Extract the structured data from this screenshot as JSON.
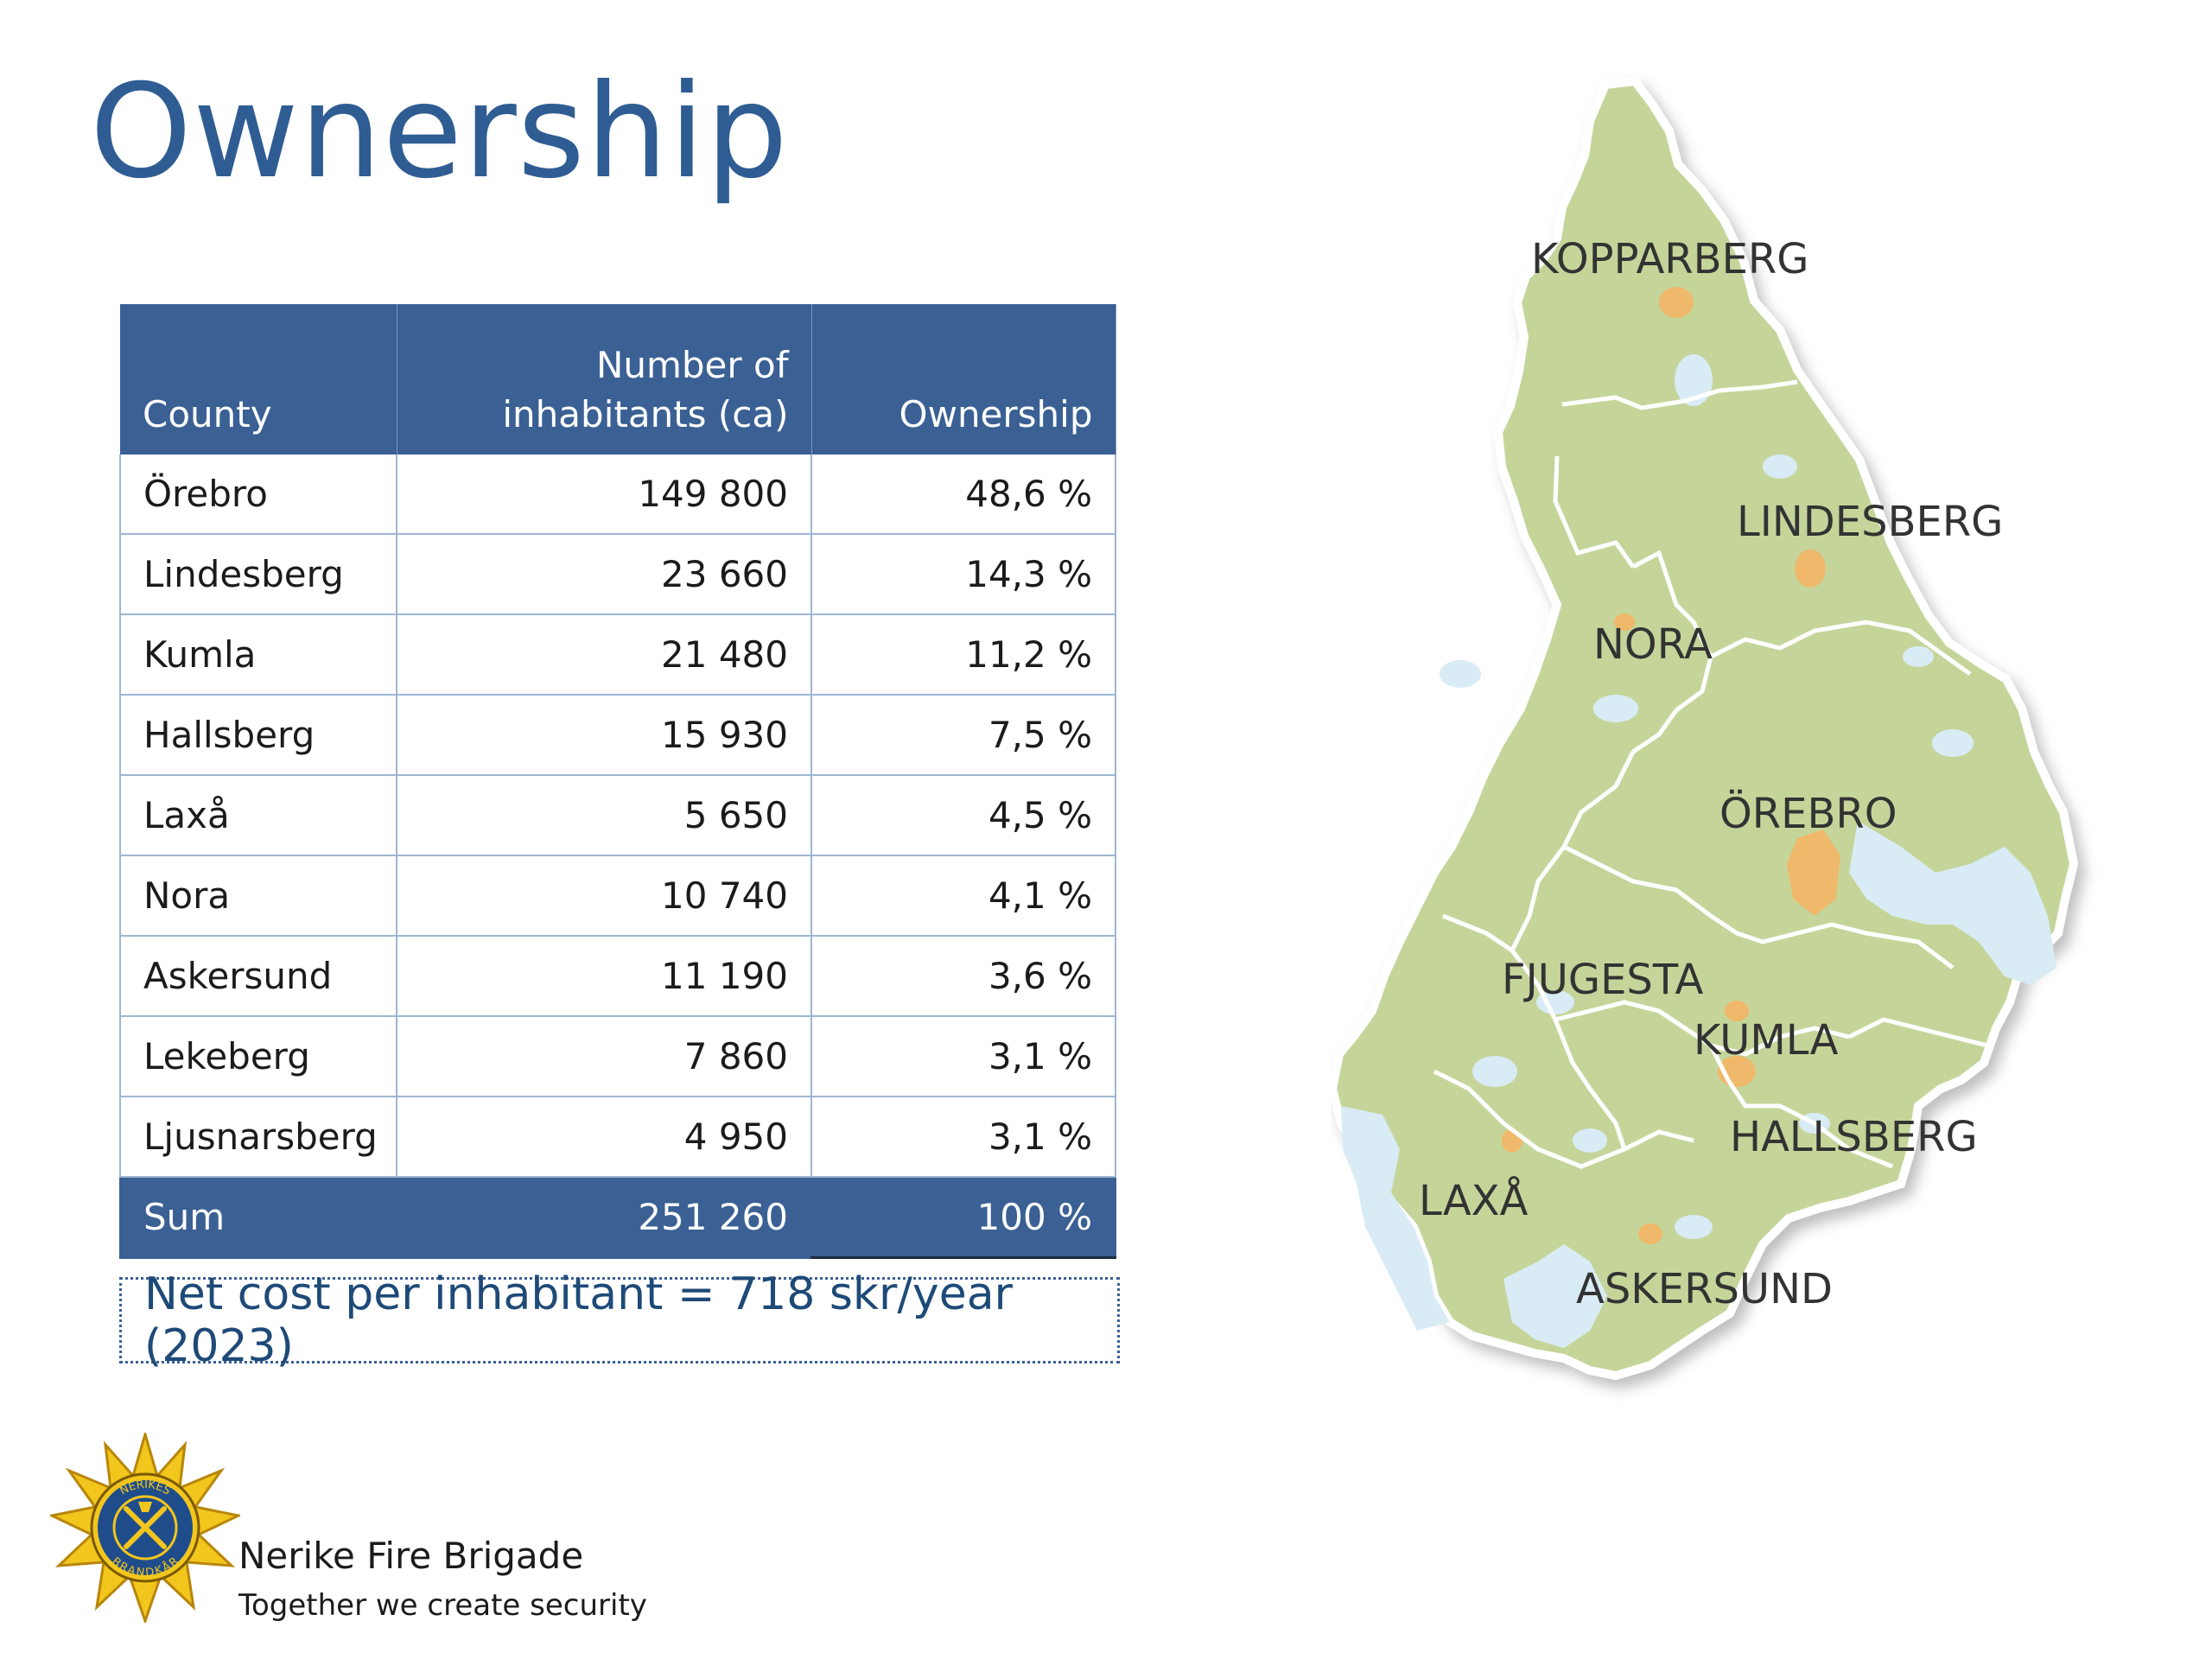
{
  "title": "Ownership",
  "table": {
    "headers": [
      "County",
      "Number of inhabitants (ca)",
      "Ownership"
    ],
    "header_inhabitants_line1": "Number of",
    "header_inhabitants_line2": "inhabitants (ca)",
    "rows": [
      {
        "county": "Örebro",
        "inhabitants": "149 800",
        "ownership": "48,6 %"
      },
      {
        "county": "Lindesberg",
        "inhabitants": "23 660",
        "ownership": "14,3 %"
      },
      {
        "county": "Kumla",
        "inhabitants": "21 480",
        "ownership": "11,2 %"
      },
      {
        "county": "Hallsberg",
        "inhabitants": "15 930",
        "ownership": "7,5 %"
      },
      {
        "county": "Laxå",
        "inhabitants": "5 650",
        "ownership": "4,5 %"
      },
      {
        "county": "Nora",
        "inhabitants": "10 740",
        "ownership": "4,1 %"
      },
      {
        "county": "Askersund",
        "inhabitants": "11 190",
        "ownership": "3,6 %"
      },
      {
        "county": "Lekeberg",
        "inhabitants": "7 860",
        "ownership": "3,1 %"
      },
      {
        "county": "Ljusnarsberg",
        "inhabitants": "4 950",
        "ownership": "3,1 %"
      }
    ],
    "sum": {
      "label": "Sum",
      "inhabitants": "251 260",
      "ownership": "100 %"
    }
  },
  "net_cost": "Net cost per inhabitant = 718 skr/year (2023)",
  "map": {
    "labels": [
      "KOPPARBERG",
      "LINDESBERG",
      "NORA",
      "ÖREBRO",
      "FJUGESTA",
      "KUMLA",
      "HALLSBERG",
      "LAXÅ",
      "ASKERSUND"
    ],
    "colors": {
      "land": "#c5d59a",
      "water": "#d9ecf5",
      "towns": "#f0b86a",
      "borders": "#ffffff"
    }
  },
  "organization": {
    "name": "Nerike Fire Brigade",
    "tagline": "Together we create security",
    "logo_icon": "fire-brigade-emblem",
    "emblem_text": [
      "NERIKES",
      "BRANDKÅR"
    ]
  }
}
